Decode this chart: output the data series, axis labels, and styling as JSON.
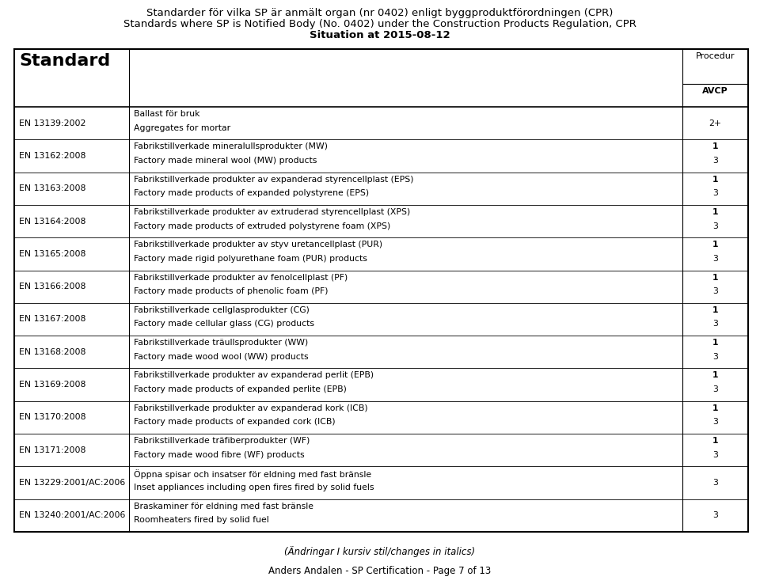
{
  "title_line1": "Standarder för vilka SP är anmält organ (nr 0402) enligt byggproduktförordningen (CPR)",
  "title_line2": "Standards where SP is Notified Body (No. 0402) under the Construction Products Regulation, CPR",
  "title_line3": "Situation at 2015-08-12",
  "col_header_standard": "Standard",
  "col_header_procedur": "Procedur",
  "col_header_avcp": "AVCP",
  "footer_italic": "(Ändringar I kursiv stil/changes in italics)",
  "footer_bottom": "Anders Andalen - SP Certification - Page 7 of 13",
  "rows": [
    {
      "standard": "EN 13139:2002",
      "description_sv": "Ballast för bruk",
      "description_en": "Aggregates for mortar",
      "avcp": "2+"
    },
    {
      "standard": "EN 13162:2008",
      "description_sv": "Fabrikstillverkade mineralullsprodukter (MW)",
      "description_en": "Factory made mineral wool (MW) products",
      "avcp": "1/3"
    },
    {
      "standard": "EN 13163:2008",
      "description_sv": "Fabrikstillverkade produkter av expanderad styrencellplast (EPS)",
      "description_en": "Factory made products of expanded polystyrene (EPS)",
      "avcp": "1/3"
    },
    {
      "standard": "EN 13164:2008",
      "description_sv": "Fabrikstillverkade produkter av extruderad styrencellplast (XPS)",
      "description_en": "Factory made products of extruded polystyrene foam (XPS)",
      "avcp": "1/3"
    },
    {
      "standard": "EN 13165:2008",
      "description_sv": "Fabrikstillverkade produkter av styv uretancellplast (PUR)",
      "description_en": "Factory made rigid polyurethane foam (PUR) products",
      "avcp": "1/3"
    },
    {
      "standard": "EN 13166:2008",
      "description_sv": "Fabrikstillverkade produkter av fenolcellplast (PF)",
      "description_en": "Factory made products of phenolic foam (PF)",
      "avcp": "1/3"
    },
    {
      "standard": "EN 13167:2008",
      "description_sv": "Fabrikstillverkade cellglasprodukter (CG)",
      "description_en": "Factory made cellular glass (CG) products",
      "avcp": "1/3"
    },
    {
      "standard": "EN 13168:2008",
      "description_sv": "Fabrikstillverkade träullsprodukter (WW)",
      "description_en": "Factory made wood wool (WW) products",
      "avcp": "1/3"
    },
    {
      "standard": "EN 13169:2008",
      "description_sv": "Fabrikstillverkade produkter av expanderad perlit (EPB)",
      "description_en": "Factory made products of expanded perlite (EPB)",
      "avcp": "1/3"
    },
    {
      "standard": "EN 13170:2008",
      "description_sv": "Fabrikstillverkade produkter av expanderad kork (ICB)",
      "description_en": "Factory made products of expanded cork (ICB)",
      "avcp": "1/3"
    },
    {
      "standard": "EN 13171:2008",
      "description_sv": "Fabrikstillverkade träfiberprodukter (WF)",
      "description_en": "Factory made wood fibre (WF) products",
      "avcp": "1/3"
    },
    {
      "standard": "EN 13229:2001/AC:2006",
      "description_sv": "Öppna spisar och insatser för eldning med fast bränsle",
      "description_en": "Inset appliances including open fires fired by solid fuels",
      "avcp": "3"
    },
    {
      "standard": "EN 13240:2001/AC:2006",
      "description_sv": "Braskaminer för eldning med fast bränsle",
      "description_en": "Roomheaters fired by solid fuel",
      "avcp": "3"
    }
  ],
  "bg_color": "#ffffff",
  "text_color": "#000000"
}
